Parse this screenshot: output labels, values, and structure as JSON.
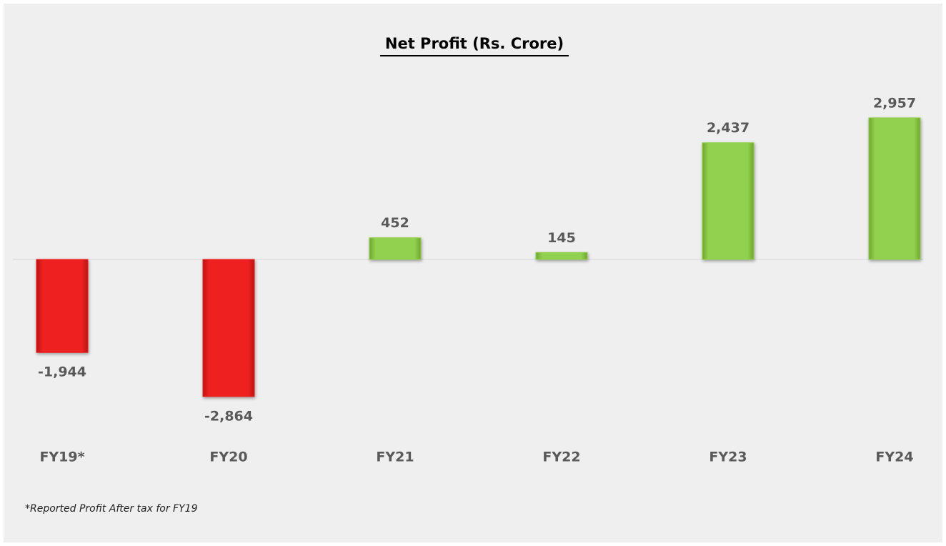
{
  "chart_data": {
    "type": "bar",
    "title": "Net Profit (Rs. Crore)",
    "categories": [
      "FY19*",
      "FY20",
      "FY21",
      "FY22",
      "FY23",
      "FY24"
    ],
    "values": [
      -1944,
      -2864,
      452,
      145,
      2437,
      2957
    ],
    "value_labels": [
      "-1,944",
      "-2,864",
      "452",
      "145",
      "2,437",
      "2,957"
    ],
    "colors": {
      "negative": "#ee2020",
      "positive": "#92d050"
    },
    "annotation": "*Reported Profit After tax for FY19"
  }
}
